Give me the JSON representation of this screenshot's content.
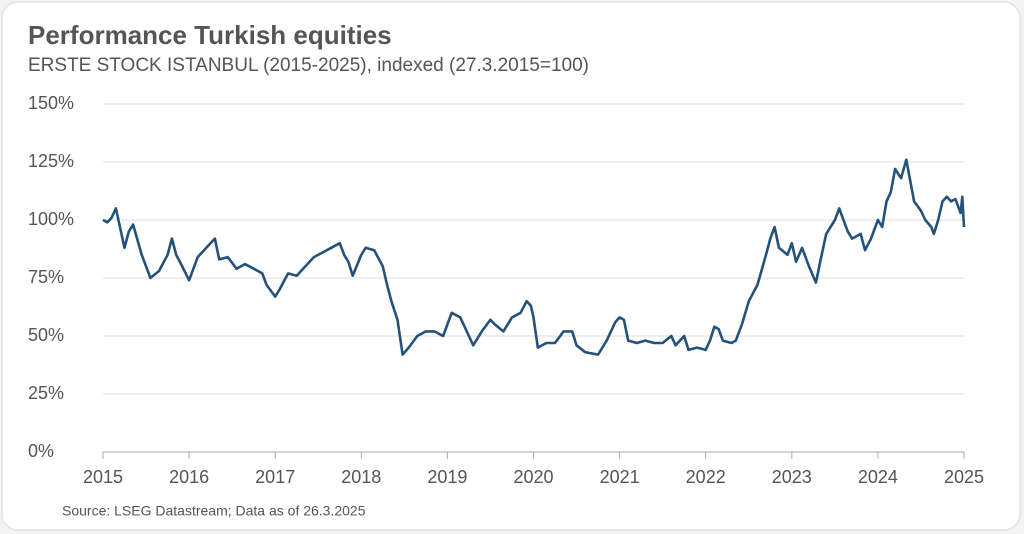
{
  "chart_data": {
    "type": "line",
    "title": "Performance Turkish equities",
    "subtitle": "ERSTE STOCK ISTANBUL (2015-2025), indexed (27.3.2015=100)",
    "source": "Source: LSEG Datastream; Data as of 26.3.2025",
    "xlim": [
      2015,
      2025
    ],
    "xticks": [
      2015,
      2016,
      2017,
      2018,
      2019,
      2020,
      2021,
      2022,
      2023,
      2024,
      2025
    ],
    "ylim": [
      0,
      150
    ],
    "yticks": [
      {
        "value": 0,
        "label": "0%"
      },
      {
        "value": 25,
        "label": "25%"
      },
      {
        "value": 50,
        "label": "50%"
      },
      {
        "value": 75,
        "label": "75%"
      },
      {
        "value": 100,
        "label": "100%"
      },
      {
        "value": 125,
        "label": "125%"
      },
      {
        "value": 150,
        "label": "150%"
      }
    ],
    "grid": true,
    "series": [
      {
        "name": "ERSTE STOCK ISTANBUL",
        "color": "#24527a",
        "x": [
          2015.0,
          2015.05,
          2015.1,
          2015.15,
          2015.25,
          2015.3,
          2015.35,
          2015.45,
          2015.5,
          2015.55,
          2015.65,
          2015.75,
          2015.8,
          2015.85,
          2015.92,
          2016.0,
          2016.1,
          2016.2,
          2016.3,
          2016.35,
          2016.45,
          2016.55,
          2016.65,
          2016.75,
          2016.85,
          2016.9,
          2017.0,
          2017.05,
          2017.15,
          2017.25,
          2017.35,
          2017.45,
          2017.55,
          2017.65,
          2017.75,
          2017.8,
          2017.85,
          2017.9,
          2018.0,
          2018.05,
          2018.15,
          2018.25,
          2018.3,
          2018.35,
          2018.42,
          2018.48,
          2018.55,
          2018.65,
          2018.75,
          2018.85,
          2018.95,
          2019.0,
          2019.05,
          2019.15,
          2019.25,
          2019.3,
          2019.4,
          2019.5,
          2019.55,
          2019.65,
          2019.75,
          2019.85,
          2019.92,
          2019.97,
          2020.0,
          2020.05,
          2020.15,
          2020.25,
          2020.35,
          2020.45,
          2020.5,
          2020.6,
          2020.75,
          2020.85,
          2020.95,
          2021.0,
          2021.05,
          2021.1,
          2021.2,
          2021.3,
          2021.4,
          2021.5,
          2021.6,
          2021.65,
          2021.75,
          2021.8,
          2021.9,
          2022.0,
          2022.05,
          2022.1,
          2022.15,
          2022.2,
          2022.3,
          2022.35,
          2022.42,
          2022.5,
          2022.6,
          2022.7,
          2022.75,
          2022.8,
          2022.85,
          2022.95,
          2023.0,
          2023.05,
          2023.12,
          2023.2,
          2023.28,
          2023.33,
          2023.4,
          2023.5,
          2023.55,
          2023.65,
          2023.7,
          2023.8,
          2023.85,
          2023.92,
          2024.0,
          2024.05,
          2024.1,
          2024.15,
          2024.2,
          2024.27,
          2024.33,
          2024.36,
          2024.42,
          2024.5,
          2024.55,
          2024.62,
          2024.65,
          2024.7,
          2024.75,
          2024.8,
          2024.85,
          2024.9,
          2024.93,
          2024.96,
          2024.98,
          2025.0
        ],
        "values": [
          100,
          99,
          101,
          105,
          88,
          95,
          98,
          85,
          80,
          75,
          78,
          85,
          92,
          85,
          80,
          74,
          84,
          88,
          92,
          83,
          84,
          79,
          81,
          79,
          77,
          72,
          67,
          70,
          77,
          76,
          80,
          84,
          86,
          88,
          90,
          85,
          82,
          76,
          85,
          88,
          87,
          80,
          72,
          65,
          57,
          42,
          45,
          50,
          52,
          52,
          50,
          55,
          60,
          58,
          50,
          46,
          52,
          57,
          55,
          52,
          58,
          60,
          65,
          63,
          58,
          45,
          47,
          47,
          52,
          52,
          46,
          43,
          42,
          48,
          56,
          58,
          57,
          48,
          47,
          48,
          47,
          47,
          50,
          46,
          50,
          44,
          45,
          44,
          48,
          54,
          53,
          48,
          47,
          48,
          55,
          65,
          72,
          85,
          92,
          97,
          88,
          85,
          90,
          82,
          88,
          80,
          73,
          82,
          94,
          100,
          105,
          95,
          92,
          94,
          87,
          92,
          100,
          97,
          108,
          112,
          122,
          118,
          126,
          120,
          108,
          104,
          100,
          97,
          94,
          100,
          108,
          110,
          108,
          109,
          106,
          103,
          110,
          97
        ]
      }
    ]
  }
}
